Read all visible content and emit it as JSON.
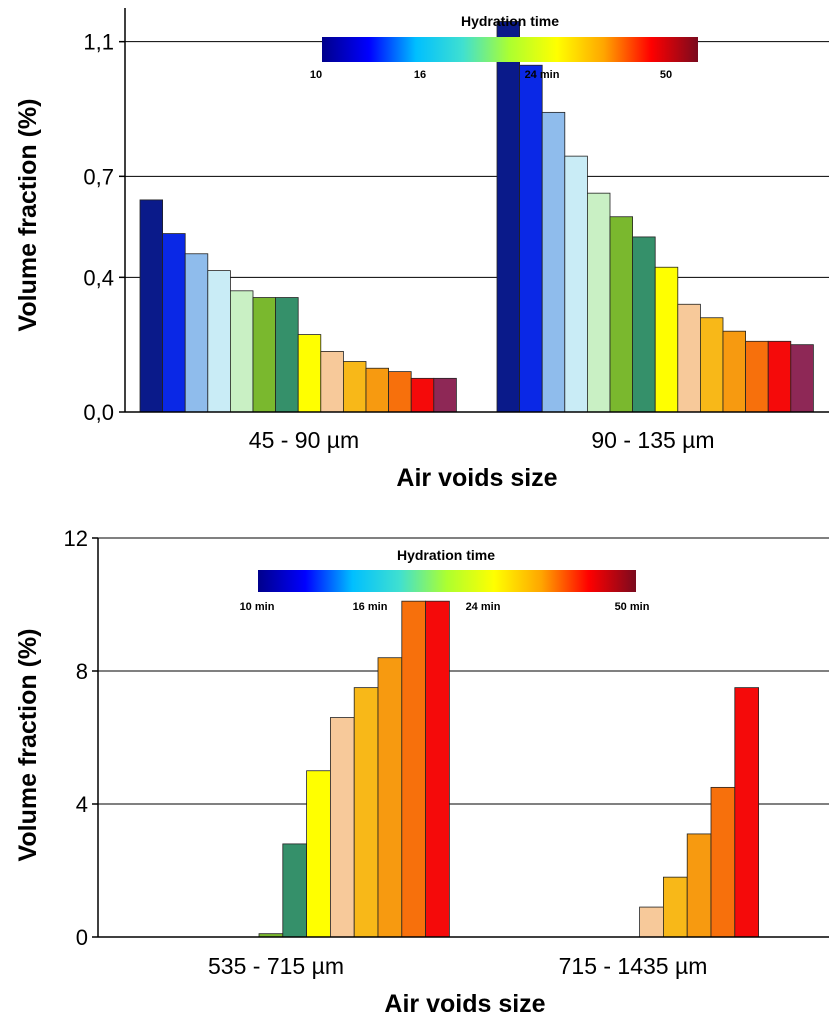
{
  "palette": [
    "#0a1a8a",
    "#0a28e6",
    "#8fbcec",
    "#c9ecf6",
    "#c9f0c4",
    "#7ab82e",
    "#35906a",
    "#ffff00",
    "#f7c99a",
    "#f8b818",
    "#f79a10",
    "#f7700c",
    "#f50a0a",
    "#8e2856"
  ],
  "colorbar_colors": [
    "#00008b",
    "#0000ff",
    "#00bfff",
    "#40e0d0",
    "#adff2f",
    "#ffff00",
    "#ffa500",
    "#ff0000",
    "#7a0a1e"
  ],
  "chart_data": [
    {
      "type": "bar",
      "ylabel": "Volume fraction (%)",
      "xlabel": "Air voids size",
      "ylim": [
        0.0,
        1.2
      ],
      "yticks": [
        0.0,
        0.4,
        0.7,
        1.1
      ],
      "ytick_labels": [
        "0,0",
        "0,4",
        "0,7",
        "1,1"
      ],
      "grid": true,
      "categories": [
        "45 - 90 µm",
        "90 - 135 µm"
      ],
      "groups": [
        {
          "category": "45 - 90 µm",
          "values": [
            0.63,
            0.53,
            0.47,
            0.42,
            0.36,
            0.34,
            0.34,
            0.23,
            0.18,
            0.15,
            0.13,
            0.12,
            0.1,
            0.1
          ]
        },
        {
          "category": "90 - 135 µm",
          "values": [
            1.16,
            1.03,
            0.89,
            0.76,
            0.65,
            0.58,
            0.52,
            0.43,
            0.32,
            0.28,
            0.24,
            0.21,
            0.21,
            0.2
          ]
        }
      ],
      "colorbar": {
        "title": "Hydration time",
        "labels": [
          "10",
          "16",
          "24 min",
          "50"
        ],
        "placement": "top-center"
      }
    },
    {
      "type": "bar",
      "ylabel": "Volume fraction (%)",
      "xlabel": "Air voids size",
      "ylim": [
        0,
        12
      ],
      "yticks": [
        0,
        4,
        8,
        12
      ],
      "ytick_labels": [
        "0",
        "4",
        "8",
        "12"
      ],
      "grid": true,
      "categories": [
        "535 - 715 µm",
        "715 - 1435 µm"
      ],
      "groups": [
        {
          "category": "535 - 715 µm",
          "values": [
            0,
            0,
            0,
            0,
            0,
            0.1,
            2.8,
            5.0,
            6.6,
            7.5,
            8.4,
            10.1,
            10.1
          ]
        },
        {
          "category": "715 - 1435 µm",
          "values": [
            0,
            0,
            0,
            0,
            0,
            0,
            0,
            0.9,
            1.8,
            3.1,
            4.5,
            7.5
          ]
        }
      ],
      "group_color_offset": [
        0,
        1
      ],
      "colorbar": {
        "title": "Hydration time",
        "labels": [
          "10 min",
          "16 min",
          "24 min",
          "50 min"
        ],
        "placement": "top-center"
      }
    }
  ]
}
